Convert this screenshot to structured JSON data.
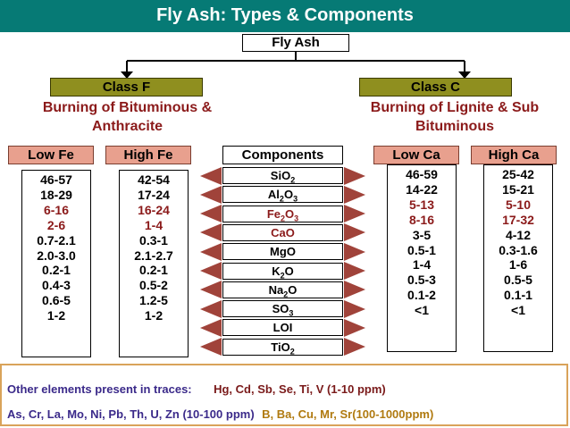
{
  "title": "Fly Ash: Types & Components",
  "root": "Fly Ash",
  "class_f": {
    "label": "Class F",
    "desc_line1": "Burning of Bituminous &",
    "desc_line2": "Anthracite"
  },
  "class_c": {
    "label": "Class C",
    "desc_line1": "Burning of Lignite & Sub",
    "desc_line2": "Bituminous"
  },
  "headers": {
    "low_fe": "Low Fe",
    "high_fe": "High Fe",
    "components": "Components",
    "low_ca": "Low Ca",
    "high_ca": "High Ca"
  },
  "components": [
    {
      "base": "SiO",
      "sub": "2",
      "tail": "",
      "sub2": "",
      "color": "#000000"
    },
    {
      "base": "Al",
      "sub": "2",
      "tail": "O",
      "sub2": "3",
      "color": "#000000"
    },
    {
      "base": "Fe",
      "sub": "2",
      "tail": "O",
      "sub2": "3",
      "color": "#8b1a1a"
    },
    {
      "base": "CaO",
      "sub": "",
      "tail": "",
      "sub2": "",
      "color": "#8b1a1a"
    },
    {
      "base": "MgO",
      "sub": "",
      "tail": "",
      "sub2": "",
      "color": "#000000"
    },
    {
      "base": "K",
      "sub": "2",
      "tail": "O",
      "sub2": "",
      "color": "#000000"
    },
    {
      "base": "Na",
      "sub": "2",
      "tail": "O",
      "sub2": "",
      "color": "#000000"
    },
    {
      "base": "SO",
      "sub": "3",
      "tail": "",
      "sub2": "",
      "color": "#000000"
    },
    {
      "base": "LOI",
      "sub": "",
      "tail": "",
      "sub2": "",
      "color": "#000000"
    },
    {
      "base": "TiO",
      "sub": "2",
      "tail": "",
      "sub2": "",
      "color": "#000000"
    }
  ],
  "low_fe_values": [
    "46-57",
    "18-29",
    "6-16",
    "2-6",
    "0.7-2.1",
    "2.0-3.0",
    "0.2-1",
    "0.4-3",
    "0.6-5",
    "1-2"
  ],
  "high_fe_values": [
    "42-54",
    "17-24",
    "16-24",
    "1-4",
    "0.3-1",
    "2.1-2.7",
    "0.2-1",
    "0.5-2",
    "1.2-5",
    "1-2"
  ],
  "low_ca_values": [
    "46-59",
    "14-22",
    "5-13",
    "8-16",
    "3-5",
    "0.5-1",
    "1-4",
    "0.5-3",
    "0.1-2",
    "<1"
  ],
  "high_ca_values": [
    "25-42",
    "15-21",
    "5-10",
    "17-32",
    "4-12",
    "0.3-1.6",
    "1-6",
    "0.5-5",
    "0.1-1",
    "<1"
  ],
  "highlight_color": "#8b1a1a",
  "traces": {
    "label": "Other elements present in traces:",
    "first": "Hg, Cd, Sb, Se, Ti, V (1-10 ppm)",
    "second": "As, Cr, La, Mo, Ni, Pb, Th, U, Zn (10-100 ppm)",
    "third": "B, Ba, Cu, Mr, Sr(100-1000ppm)"
  }
}
